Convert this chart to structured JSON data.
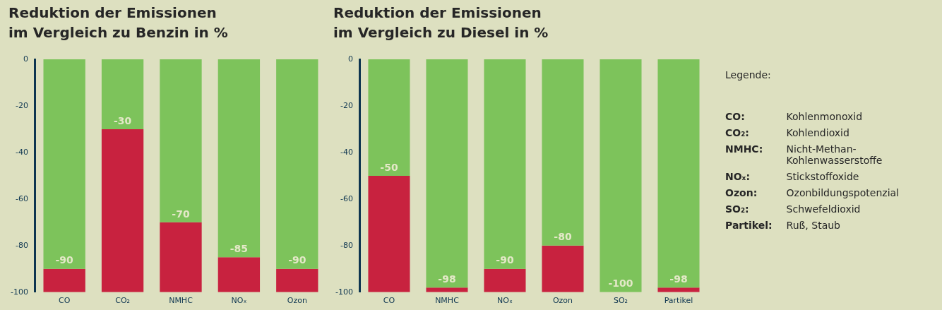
{
  "chart_data": [
    {
      "type": "bar",
      "title": [
        "Reduktion der Emissionen",
        "im Vergleich zu Benzin in %"
      ],
      "categories": [
        "CO",
        "CO₂",
        "NMHC",
        "NOₓ",
        "Ozon"
      ],
      "stacked": true,
      "ylim": [
        -100,
        0
      ],
      "yticks": [
        0,
        -20,
        -40,
        -60,
        -80,
        -100
      ],
      "grid": false,
      "legend": false,
      "series": [
        {
          "color": "#7dc35b",
          "values": [
            -90,
            -30,
            -70,
            -85,
            -90
          ],
          "value_labels": [
            "-90",
            "-30",
            "-70",
            "-85",
            "-90"
          ]
        },
        {
          "color": "#c8223f",
          "values": [
            -10,
            -70,
            -30,
            -15,
            -10
          ]
        }
      ]
    },
    {
      "type": "bar",
      "title": [
        "Reduktion der Emissionen",
        "im Vergleich zu Diesel in %"
      ],
      "categories": [
        "CO",
        "NMHC",
        "NOₓ",
        "Ozon",
        "SO₂",
        "Partikel"
      ],
      "stacked": true,
      "ylim": [
        -100,
        0
      ],
      "yticks": [
        0,
        -20,
        -40,
        -60,
        -80,
        -100
      ],
      "grid": false,
      "legend": false,
      "series": [
        {
          "color": "#7dc35b",
          "values": [
            -50,
            -98,
            -90,
            -80,
            -100,
            -98
          ],
          "value_labels": [
            "-50",
            "-98",
            "-90",
            "-80",
            "-100",
            "-98"
          ]
        },
        {
          "color": "#c8223f",
          "values": [
            -50,
            -2,
            -10,
            -20,
            0,
            -2
          ]
        }
      ]
    },
    {
      "type": "other",
      "title": "Legende:",
      "annotations": [
        "CO:",
        "Kohlenmonoxid",
        "CO₂:",
        "Kohlendioxid",
        "NMHC:",
        "Nicht-Methan-Kohlenwasserstoffe",
        "NOₓ:",
        "Stickstoffoxide",
        "Ozon:",
        "Ozonbildungspotenzial",
        "SO₂:",
        "Schwefeldioxid",
        "Partikel:",
        "Ruß, Staub"
      ]
    }
  ]
}
